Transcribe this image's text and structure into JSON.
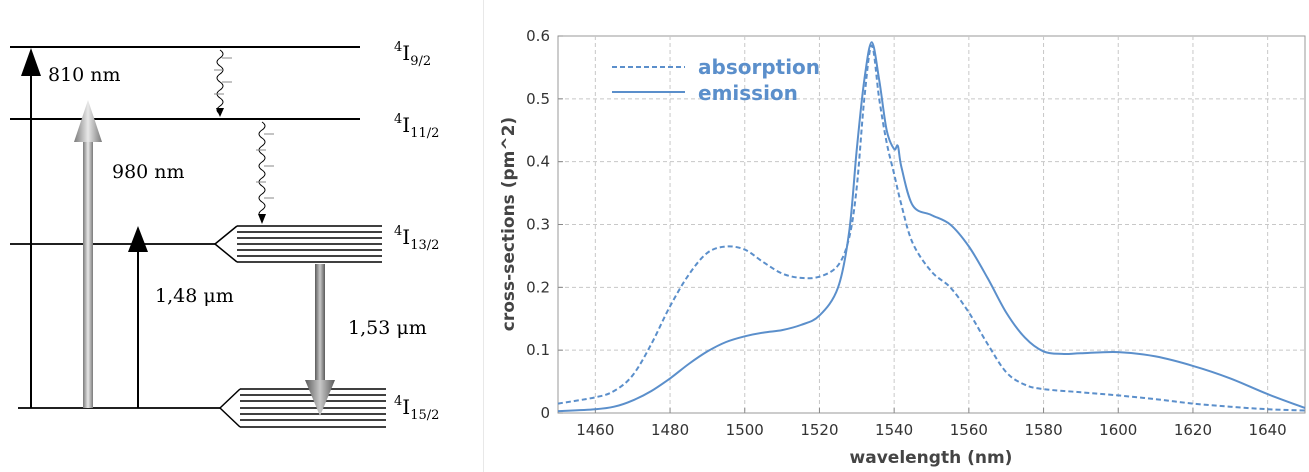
{
  "diagram": {
    "levels": [
      {
        "base": "4",
        "main": "I",
        "sub": "9/2"
      },
      {
        "base": "4",
        "main": "I",
        "sub": "11/2"
      },
      {
        "base": "4",
        "main": "I",
        "sub": "13/2"
      },
      {
        "base": "4",
        "main": "I",
        "sub": "15/2"
      }
    ],
    "labels": {
      "pump_810": "810 nm",
      "pump_980": "980 nm",
      "pump_148": "1,48 μm",
      "emission_153": "1,53 μm"
    }
  },
  "chart_data": {
    "type": "line",
    "xlabel": "wavelength (nm)",
    "ylabel": "cross-sections (pm^2)",
    "xlim": [
      1450,
      1650
    ],
    "ylim": [
      0,
      0.6
    ],
    "xticks": [
      1460,
      1480,
      1500,
      1520,
      1540,
      1560,
      1580,
      1600,
      1620,
      1640
    ],
    "yticks": [
      0,
      0.1,
      0.2,
      0.3,
      0.4,
      0.5,
      0.6
    ],
    "grid": true,
    "legend_position": "top-left",
    "series": [
      {
        "name": "absorption",
        "style": "dashed",
        "color": "#5b8fcb",
        "x": [
          1450,
          1460,
          1465,
          1470,
          1475,
          1480,
          1485,
          1490,
          1495,
          1500,
          1505,
          1510,
          1515,
          1520,
          1525,
          1528,
          1530,
          1532,
          1534,
          1536,
          1538,
          1540,
          1542,
          1545,
          1550,
          1555,
          1560,
          1565,
          1570,
          1575,
          1580,
          1590,
          1600,
          1610,
          1620,
          1630,
          1640,
          1650
        ],
        "y": [
          0.015,
          0.025,
          0.035,
          0.06,
          0.11,
          0.17,
          0.22,
          0.255,
          0.265,
          0.26,
          0.24,
          0.222,
          0.215,
          0.217,
          0.235,
          0.28,
          0.36,
          0.5,
          0.585,
          0.5,
          0.43,
          0.38,
          0.33,
          0.27,
          0.225,
          0.2,
          0.16,
          0.11,
          0.065,
          0.045,
          0.038,
          0.033,
          0.028,
          0.022,
          0.015,
          0.01,
          0.006,
          0.004
        ]
      },
      {
        "name": "emission",
        "style": "solid",
        "color": "#5b8fcb",
        "x": [
          1450,
          1460,
          1465,
          1470,
          1475,
          1480,
          1485,
          1490,
          1495,
          1500,
          1505,
          1510,
          1515,
          1520,
          1525,
          1528,
          1530,
          1532,
          1534,
          1536,
          1538,
          1540,
          1541,
          1542,
          1545,
          1550,
          1555,
          1560,
          1565,
          1570,
          1575,
          1580,
          1585,
          1590,
          1600,
          1610,
          1620,
          1630,
          1640,
          1650
        ],
        "y": [
          0.003,
          0.006,
          0.01,
          0.02,
          0.035,
          0.055,
          0.078,
          0.098,
          0.113,
          0.122,
          0.128,
          0.132,
          0.14,
          0.155,
          0.2,
          0.29,
          0.42,
          0.53,
          0.59,
          0.53,
          0.45,
          0.42,
          0.425,
          0.39,
          0.33,
          0.315,
          0.3,
          0.265,
          0.215,
          0.16,
          0.12,
          0.098,
          0.094,
          0.095,
          0.097,
          0.09,
          0.075,
          0.055,
          0.03,
          0.008
        ]
      }
    ]
  }
}
